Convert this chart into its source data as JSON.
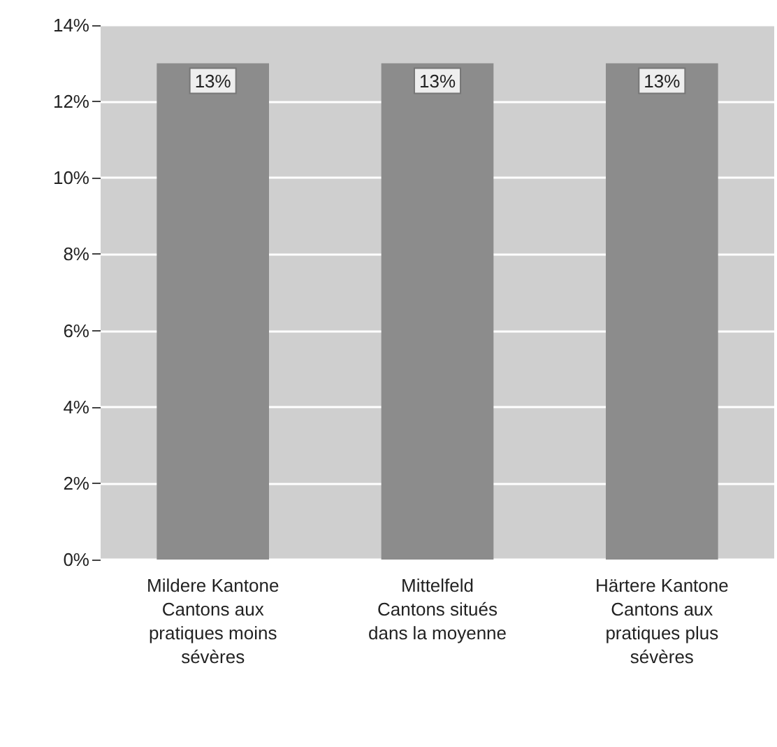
{
  "chart_data": {
    "type": "bar",
    "categories": [
      "Mildere Kantone\nCantons aux\npratiques moins\nsévères",
      "Mittelfeld\nCantons situés\ndans la moyenne",
      "Härtere Kantone\nCantons aux\npratiques plus\nsévères"
    ],
    "values": [
      13,
      13,
      13
    ],
    "value_labels": [
      "13%",
      "13%",
      "13%"
    ],
    "color": "#8c8c8c",
    "ylim": [
      0,
      14
    ],
    "yticks": [
      {
        "value": 0,
        "label": "0%"
      },
      {
        "value": 2,
        "label": "2%"
      },
      {
        "value": 4,
        "label": "4%"
      },
      {
        "value": 6,
        "label": "6%"
      },
      {
        "value": 8,
        "label": "8%"
      },
      {
        "value": 10,
        "label": "10%"
      },
      {
        "value": 12,
        "label": "12%"
      },
      {
        "value": 14,
        "label": "14%"
      }
    ],
    "grid": "y"
  }
}
